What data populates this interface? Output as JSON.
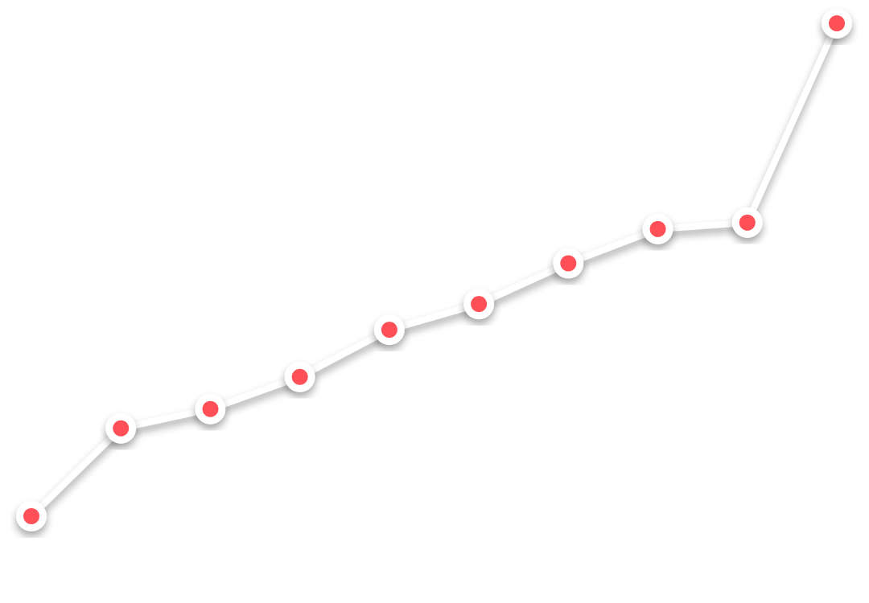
{
  "chart_data": {
    "type": "line",
    "x": [
      1,
      2,
      3,
      4,
      5,
      6,
      7,
      8,
      9,
      10
    ],
    "values": [
      0,
      20.5,
      25,
      32.5,
      43.5,
      49.5,
      59,
      67,
      68.5,
      115
    ],
    "xlim": [
      1,
      10
    ],
    "ylim": [
      0,
      115
    ],
    "grid": false,
    "legend": "none",
    "axes_visible": false,
    "line_color": "#ffffff",
    "marker_fill": "#ff4f57",
    "marker_ring": "#ffffff"
  }
}
